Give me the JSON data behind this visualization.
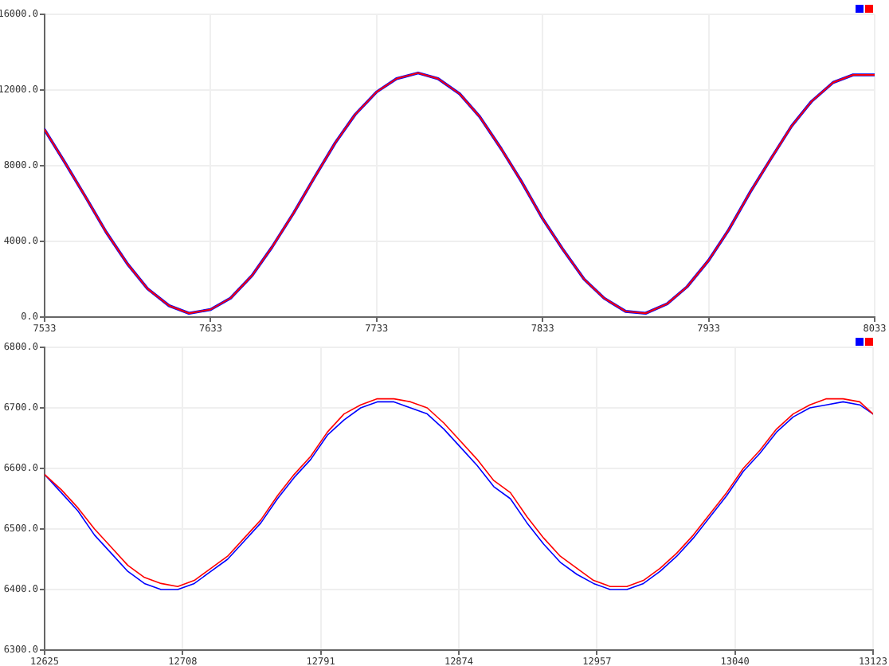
{
  "chart_data": [
    {
      "type": "line",
      "xlim": [
        7533,
        8033
      ],
      "xticks": [
        7533,
        7633,
        7733,
        7833,
        7933,
        8033
      ],
      "ylim": [
        0,
        16000
      ],
      "yticks": [
        {
          "value": 0,
          "label": "0.0"
        },
        {
          "value": 4000,
          "label": "4000.0"
        },
        {
          "value": 8000,
          "label": "8000.0"
        },
        {
          "value": 12000,
          "label": "12000.0"
        },
        {
          "value": 16000,
          "label": "16000.0"
        }
      ],
      "grid": true,
      "marker": "none",
      "line_style": "solid",
      "x": [
        7533,
        7545,
        7558,
        7570,
        7583,
        7595,
        7608,
        7620,
        7633,
        7645,
        7658,
        7670,
        7683,
        7695,
        7708,
        7720,
        7733,
        7745,
        7758,
        7770,
        7783,
        7795,
        7808,
        7820,
        7833,
        7845,
        7858,
        7870,
        7883,
        7895,
        7908,
        7920,
        7933,
        7945,
        7958,
        7970,
        7983,
        7995,
        8008,
        8020,
        8033
      ],
      "series": [
        {
          "color": "#0000ff",
          "values": [
            9900,
            8200,
            6300,
            4500,
            2800,
            1500,
            600,
            200,
            400,
            1000,
            2200,
            3700,
            5500,
            7300,
            9200,
            10700,
            11900,
            12600,
            12900,
            12600,
            11800,
            10600,
            8900,
            7200,
            5200,
            3600,
            2000,
            1000,
            300,
            200,
            700,
            1600,
            3000,
            4600,
            6600,
            8300,
            10100,
            11400,
            12400,
            12800,
            12800
          ]
        },
        {
          "color": "#ff0000",
          "values": [
            9900,
            8200,
            6300,
            4500,
            2800,
            1500,
            600,
            200,
            400,
            1000,
            2200,
            3700,
            5500,
            7300,
            9200,
            10700,
            11900,
            12600,
            12900,
            12600,
            11800,
            10600,
            8900,
            7200,
            5200,
            3600,
            2000,
            1000,
            300,
            200,
            700,
            1600,
            3000,
            4600,
            6600,
            8300,
            10100,
            11400,
            12400,
            12800,
            12800
          ]
        }
      ]
    },
    {
      "type": "line",
      "xlim": [
        12625,
        13123
      ],
      "xticks": [
        12625,
        12708,
        12791,
        12874,
        12957,
        13040,
        13123
      ],
      "ylim": [
        6300,
        6800
      ],
      "yticks": [
        {
          "value": 6300,
          "label": "6300.0"
        },
        {
          "value": 6400,
          "label": "6400.0"
        },
        {
          "value": 6500,
          "label": "6500.0"
        },
        {
          "value": 6600,
          "label": "6600.0"
        },
        {
          "value": 6700,
          "label": "6700.0"
        },
        {
          "value": 6800,
          "label": "6800.0"
        }
      ],
      "grid": true,
      "marker": "none",
      "line_style": "solid",
      "x": [
        12625,
        12635,
        12645,
        12655,
        12665,
        12675,
        12685,
        12695,
        12705,
        12715,
        12725,
        12735,
        12745,
        12755,
        12765,
        12775,
        12785,
        12795,
        12805,
        12815,
        12825,
        12835,
        12845,
        12855,
        12865,
        12875,
        12885,
        12895,
        12905,
        12915,
        12925,
        12935,
        12945,
        12955,
        12965,
        12975,
        12985,
        12995,
        13005,
        13015,
        13025,
        13035,
        13045,
        13055,
        13065,
        13075,
        13085,
        13095,
        13105,
        13115,
        13123
      ],
      "series": [
        {
          "color": "#0000ff",
          "values": [
            6590,
            6560,
            6530,
            6490,
            6460,
            6430,
            6410,
            6400,
            6400,
            6410,
            6430,
            6450,
            6480,
            6510,
            6550,
            6585,
            6615,
            6655,
            6680,
            6700,
            6710,
            6710,
            6700,
            6690,
            6665,
            6635,
            6605,
            6570,
            6550,
            6510,
            6475,
            6445,
            6425,
            6410,
            6400,
            6400,
            6410,
            6430,
            6455,
            6485,
            6520,
            6555,
            6595,
            6625,
            6660,
            6685,
            6700,
            6705,
            6710,
            6705,
            6690
          ]
        },
        {
          "color": "#ff0000",
          "values": [
            6590,
            6565,
            6535,
            6500,
            6470,
            6440,
            6420,
            6410,
            6405,
            6415,
            6435,
            6455,
            6485,
            6515,
            6555,
            6590,
            6620,
            6660,
            6690,
            6705,
            6715,
            6715,
            6710,
            6700,
            6675,
            6645,
            6615,
            6580,
            6560,
            6520,
            6485,
            6455,
            6435,
            6415,
            6405,
            6405,
            6415,
            6435,
            6460,
            6490,
            6525,
            6560,
            6600,
            6630,
            6665,
            6690,
            6705,
            6715,
            6715,
            6710,
            6690
          ]
        }
      ]
    }
  ]
}
